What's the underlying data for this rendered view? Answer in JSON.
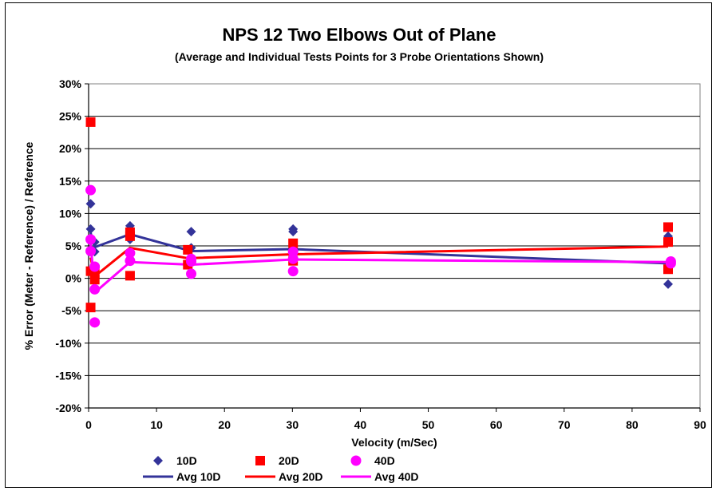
{
  "chart_data": {
    "type": "scatter",
    "title": "NPS 12 Two Elbows Out of Plane",
    "subtitle": "(Average and Individual Tests Points for 3 Probe Orientations Shown)",
    "xlabel": "Velocity (m/Sec)",
    "ylabel": "% Error (Meter - Reference) / Reference",
    "xlim": [
      0,
      90
    ],
    "ylim": [
      -20,
      30
    ],
    "x_ticks": [
      "0",
      "10",
      "20",
      "30",
      "40",
      "50",
      "60",
      "70",
      "80",
      "90"
    ],
    "y_ticks": [
      "-20%",
      "-15%",
      "-10%",
      "-5%",
      "0%",
      "5%",
      "10%",
      "15%",
      "20%",
      "25%",
      "30%"
    ],
    "grid": "horizontal",
    "legend_position": "bottom",
    "series": [
      {
        "name": "10D",
        "kind": "points",
        "marker": "diamond",
        "color": "#333399",
        "points": [
          [
            0.3,
            11.5
          ],
          [
            0.3,
            7.6
          ],
          [
            0.5,
            4.3
          ],
          [
            0.9,
            5.6
          ],
          [
            0.9,
            4.1
          ],
          [
            6.1,
            8.1
          ],
          [
            6.1,
            6.0
          ],
          [
            15.1,
            7.2
          ],
          [
            15.1,
            4.7
          ],
          [
            30.1,
            7.6
          ],
          [
            30.1,
            7.2
          ],
          [
            85.3,
            6.5
          ],
          [
            85.3,
            -0.9
          ]
        ]
      },
      {
        "name": "20D",
        "kind": "points",
        "marker": "square",
        "color": "#ff0000",
        "points": [
          [
            0.3,
            24.1
          ],
          [
            0.3,
            1.1
          ],
          [
            0.3,
            -4.5
          ],
          [
            0.9,
            0.8
          ],
          [
            0.9,
            -0.2
          ],
          [
            6.1,
            7.1
          ],
          [
            6.1,
            6.5
          ],
          [
            6.1,
            0.4
          ],
          [
            14.6,
            4.4
          ],
          [
            14.6,
            2.1
          ],
          [
            30.1,
            5.4
          ],
          [
            30.1,
            2.7
          ],
          [
            85.3,
            7.9
          ],
          [
            85.3,
            5.6
          ],
          [
            85.3,
            1.4
          ]
        ]
      },
      {
        "name": "40D",
        "kind": "points",
        "marker": "circle",
        "color": "#ff00ff",
        "points": [
          [
            0.3,
            13.6
          ],
          [
            0.3,
            6.0
          ],
          [
            0.3,
            4.2
          ],
          [
            0.9,
            1.8
          ],
          [
            0.9,
            -1.7
          ],
          [
            0.9,
            -6.8
          ],
          [
            6.1,
            3.9
          ],
          [
            6.1,
            2.7
          ],
          [
            15.1,
            3.0
          ],
          [
            15.1,
            2.6
          ],
          [
            15.1,
            0.7
          ],
          [
            30.1,
            4.1
          ],
          [
            30.1,
            3.0
          ],
          [
            30.1,
            1.1
          ],
          [
            85.7,
            2.6
          ],
          [
            85.7,
            2.3
          ]
        ]
      },
      {
        "name": "Avg 10D",
        "kind": "line",
        "color": "#333399",
        "points": [
          [
            0.3,
            7.0
          ],
          [
            0.9,
            4.8
          ],
          [
            6.1,
            6.8
          ],
          [
            15.1,
            4.2
          ],
          [
            30.1,
            4.5
          ],
          [
            85.3,
            2.3
          ]
        ]
      },
      {
        "name": "Avg 20D",
        "kind": "line",
        "color": "#ff0000",
        "points": [
          [
            0.3,
            3.2
          ],
          [
            0.9,
            0.3
          ],
          [
            6.1,
            4.7
          ],
          [
            14.6,
            3.1
          ],
          [
            30.1,
            3.7
          ],
          [
            85.3,
            4.9
          ]
        ]
      },
      {
        "name": "Avg 40D",
        "kind": "line",
        "color": "#ff00ff",
        "points": [
          [
            0.3,
            5.5
          ],
          [
            0.9,
            -2.2
          ],
          [
            6.1,
            2.5
          ],
          [
            15.1,
            2.1
          ],
          [
            30.1,
            2.9
          ],
          [
            85.7,
            2.5
          ]
        ]
      }
    ]
  }
}
